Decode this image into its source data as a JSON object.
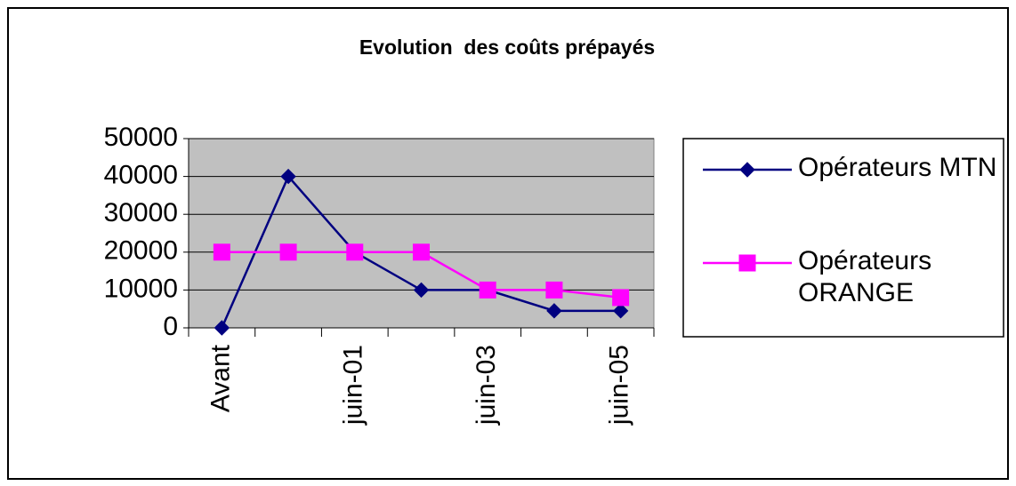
{
  "chart_data": {
    "type": "line",
    "title": "Evolution  des coûts prépayés",
    "categories": [
      "Avant",
      null,
      "juin-01",
      null,
      "juin-03",
      null,
      "juin-05"
    ],
    "series": [
      {
        "name": "Opérateurs MTN",
        "color": "#000080",
        "marker": "diamond",
        "values": [
          0,
          40000,
          20000,
          10000,
          10000,
          4500,
          4500
        ]
      },
      {
        "name": "Opérateurs ORANGE",
        "color": "#ff00ff",
        "marker": "square",
        "values": [
          20000,
          20000,
          20000,
          20000,
          10000,
          10000,
          8000
        ]
      }
    ],
    "ylim": [
      0,
      50000
    ],
    "yticks": [
      0,
      10000,
      20000,
      30000,
      40000,
      50000
    ],
    "grid": true,
    "legend": "right",
    "plot_background": "#c0c0c0"
  }
}
